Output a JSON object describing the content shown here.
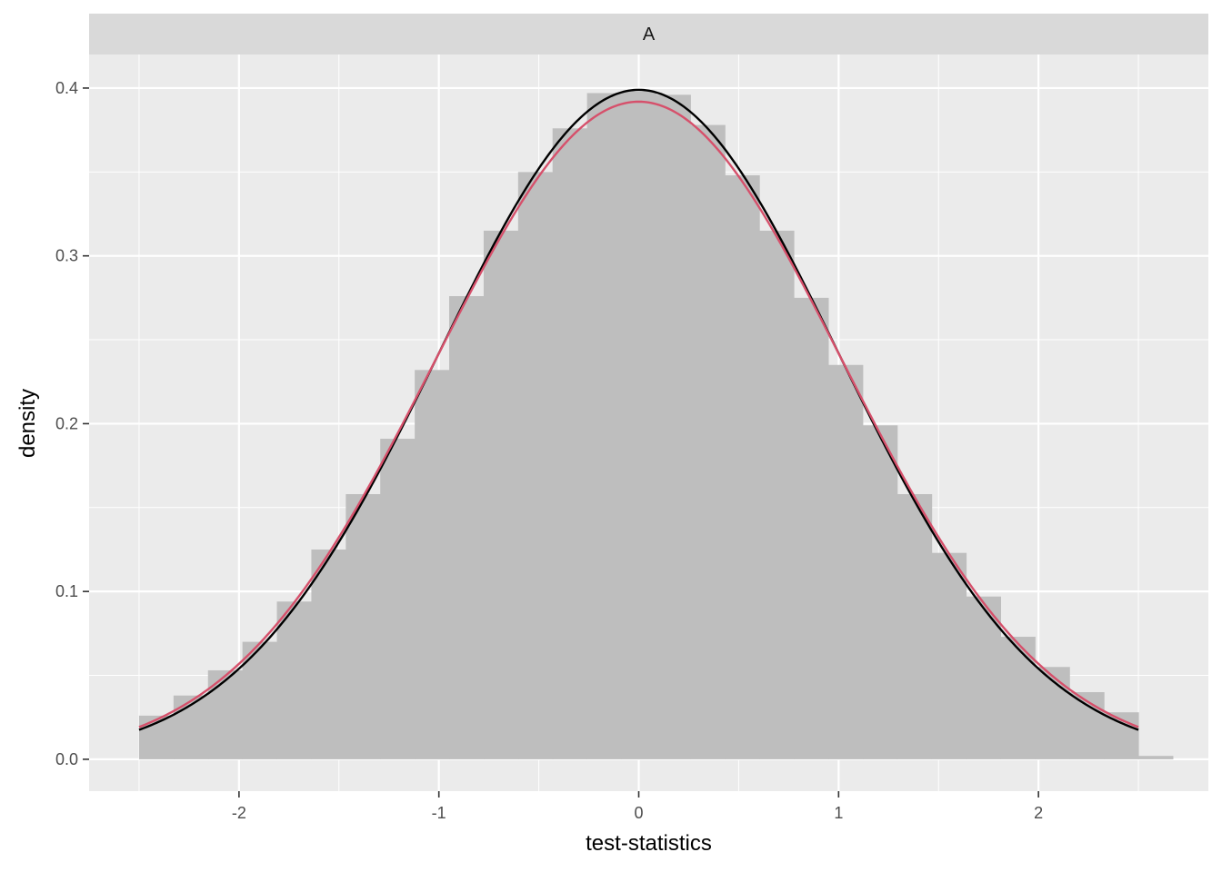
{
  "chart_data": {
    "type": "bar",
    "panel": {
      "strip_label": "A"
    },
    "xlabel": "test-statistics",
    "ylabel": "density",
    "xlim": [
      -2.75,
      2.85
    ],
    "ylim": [
      -0.019,
      0.42
    ],
    "x_ticks": [
      -2,
      -1,
      0,
      1,
      2
    ],
    "x_tick_labels": [
      "-2",
      "-1",
      "0",
      "1",
      "2"
    ],
    "x_minor_ticks": [
      -2.5,
      -1.5,
      -0.5,
      0.5,
      1.5,
      2.5
    ],
    "y_ticks": [
      0.0,
      0.1,
      0.2,
      0.3,
      0.4
    ],
    "y_tick_labels": [
      "0.0",
      "0.1",
      "0.2",
      "0.3",
      "0.4"
    ],
    "y_minor_ticks": [
      0.05,
      0.15,
      0.25,
      0.35
    ],
    "grid": true,
    "histogram": {
      "bin_width": 0.1724,
      "bin_start": -2.5,
      "fill": "#bebebe",
      "densities": [
        0.026,
        0.038,
        0.053,
        0.07,
        0.094,
        0.125,
        0.158,
        0.191,
        0.232,
        0.276,
        0.315,
        0.35,
        0.376,
        0.397,
        0.398,
        0.396,
        0.378,
        0.348,
        0.315,
        0.275,
        0.235,
        0.199,
        0.158,
        0.123,
        0.097,
        0.073,
        0.055,
        0.04,
        0.028,
        0.002
      ]
    },
    "series": [
      {
        "type": "line",
        "color": "#000000",
        "mean": 0,
        "sd": 1,
        "x_range": [
          -2.5,
          2.5
        ]
      },
      {
        "type": "line",
        "color": "#d6506b",
        "mean": 0,
        "sd": 1.018,
        "x_range": [
          -2.5,
          2.5
        ]
      }
    ],
    "colors": {
      "panel_bg": "#ebebeb",
      "strip_bg": "#d9d9d9",
      "grid": "#ffffff"
    }
  }
}
